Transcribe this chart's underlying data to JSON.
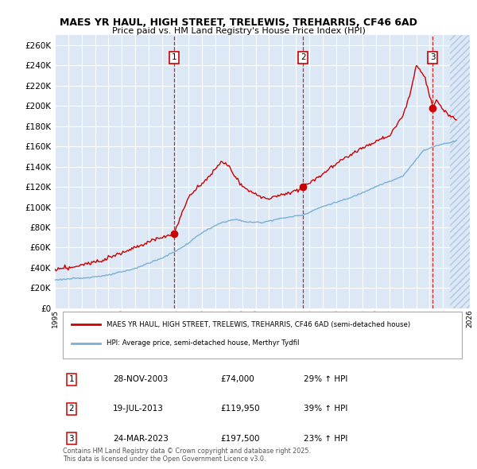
{
  "title": "MAES YR HAUL, HIGH STREET, TRELEWIS, TREHARRIS, CF46 6AD",
  "subtitle": "Price paid vs. HM Land Registry's House Price Index (HPI)",
  "ylabel_ticks": [
    0,
    20000,
    40000,
    60000,
    80000,
    100000,
    120000,
    140000,
    160000,
    180000,
    200000,
    220000,
    240000,
    260000
  ],
  "ylim": [
    0,
    270000
  ],
  "xlim_start": 1995.0,
  "xlim_end": 2026.0,
  "background_color": "#dce8f5",
  "plot_bg_color": "#dce8f5",
  "grid_color": "#ffffff",
  "red_color": "#cc0000",
  "blue_color": "#7ab0d4",
  "sale_dates_num": [
    2003.91,
    2013.54,
    2023.23
  ],
  "sale_prices": [
    74000,
    119950,
    197500
  ],
  "sale_labels": [
    "1",
    "2",
    "3"
  ],
  "legend_red": "MAES YR HAUL, HIGH STREET, TRELEWIS, TREHARRIS, CF46 6AD (semi-detached house)",
  "legend_blue": "HPI: Average price, semi-detached house, Merthyr Tydfil",
  "table_rows": [
    [
      "1",
      "28-NOV-2003",
      "£74,000",
      "29% ↑ HPI"
    ],
    [
      "2",
      "19-JUL-2013",
      "£119,950",
      "39% ↑ HPI"
    ],
    [
      "3",
      "24-MAR-2023",
      "£197,500",
      "23% ↑ HPI"
    ]
  ],
  "footer": "Contains HM Land Registry data © Crown copyright and database right 2025.\nThis data is licensed under the Open Government Licence v3.0.",
  "hatch_start": 2024.5
}
